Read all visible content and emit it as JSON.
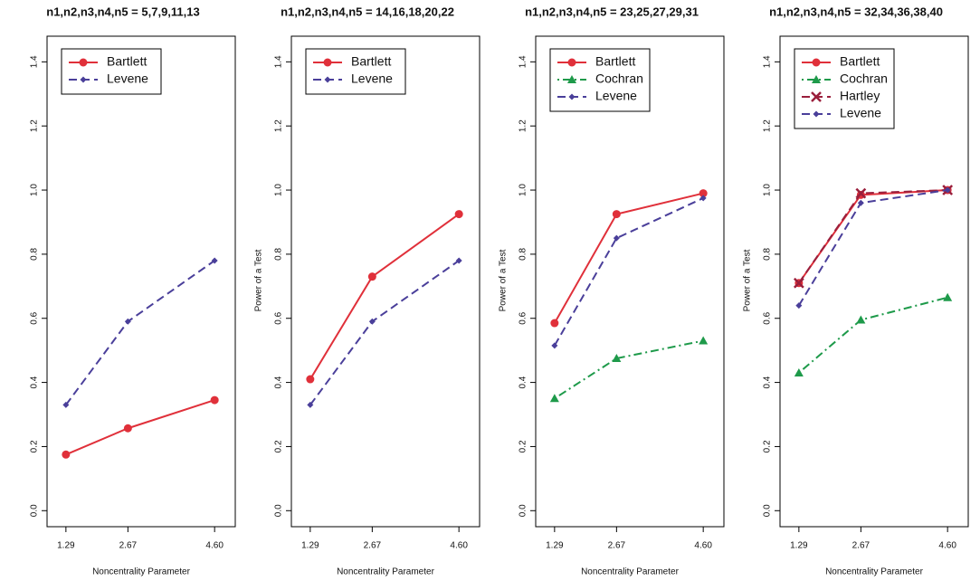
{
  "chart_data": [
    {
      "type": "line",
      "title": "n1,n2,n3,n4,n5 = 5,7,9,11,13",
      "x_label": "Noncentrality Parameter",
      "x": [
        1.29,
        2.67,
        4.6
      ],
      "xlim": [
        0.87,
        5.06
      ],
      "xticks": [
        1.29,
        2.67,
        {
          "value": 4.6,
          "label": "4.60"
        }
      ],
      "ylim": [
        -0.05,
        1.48
      ],
      "yticks": [
        {
          "value": 0,
          "label": "0.0"
        },
        0.2,
        0.4,
        0.6,
        0.8,
        {
          "value": 1,
          "label": "1.0"
        },
        1.2,
        1.4
      ],
      "legend": "upper left",
      "series": [
        {
          "name": "Bartlett",
          "color": "#e0303a",
          "line_style": "solid",
          "marker": "circle",
          "values": [
            0.175,
            0.257,
            0.345
          ]
        },
        {
          "name": "Levene",
          "color": "#4a3f9a",
          "line_style": "dashed",
          "marker": "diamond",
          "values": [
            0.33,
            0.59,
            0.78
          ]
        }
      ]
    },
    {
      "type": "line",
      "title": "n1,n2,n3,n4,n5 = 14,16,18,20,22",
      "x_label": "Noncentrality Parameter",
      "y_label": "Power of a Test",
      "x": [
        1.29,
        2.67,
        4.6
      ],
      "xlim": [
        0.87,
        5.06
      ],
      "xticks": [
        1.29,
        2.67,
        {
          "value": 4.6,
          "label": "4.60"
        }
      ],
      "ylim": [
        -0.05,
        1.48
      ],
      "yticks": [
        {
          "value": 0,
          "label": "0.0"
        },
        0.2,
        0.4,
        0.6,
        0.8,
        {
          "value": 1,
          "label": "1.0"
        },
        1.2,
        1.4
      ],
      "legend": "upper left",
      "series": [
        {
          "name": "Bartlett",
          "color": "#e0303a",
          "line_style": "solid",
          "marker": "circle",
          "values": [
            0.41,
            0.73,
            0.925
          ]
        },
        {
          "name": "Levene",
          "color": "#4a3f9a",
          "line_style": "dashed",
          "marker": "diamond",
          "values": [
            0.33,
            0.59,
            0.78
          ]
        }
      ]
    },
    {
      "type": "line",
      "title": "n1,n2,n3,n4,n5 = 23,25,27,29,31",
      "x_label": "Noncentrality Parameter",
      "y_label": "Power of a Test",
      "x": [
        1.29,
        2.67,
        4.6
      ],
      "xlim": [
        0.87,
        5.06
      ],
      "xticks": [
        1.29,
        2.67,
        {
          "value": 4.6,
          "label": "4.60"
        }
      ],
      "ylim": [
        -0.05,
        1.48
      ],
      "yticks": [
        {
          "value": 0,
          "label": "0.0"
        },
        0.2,
        0.4,
        0.6,
        0.8,
        {
          "value": 1,
          "label": "1.0"
        },
        1.2,
        1.4
      ],
      "legend": "upper left",
      "series": [
        {
          "name": "Bartlett",
          "color": "#e0303a",
          "line_style": "solid",
          "marker": "circle",
          "values": [
            0.585,
            0.925,
            0.99
          ]
        },
        {
          "name": "Cochran",
          "color": "#1e9a4a",
          "line_style": "dotdash",
          "marker": "triangle",
          "values": [
            0.35,
            0.475,
            0.53
          ]
        },
        {
          "name": "Levene",
          "color": "#4a3f9a",
          "line_style": "dashed",
          "marker": "diamond",
          "values": [
            0.515,
            0.85,
            0.975
          ]
        }
      ]
    },
    {
      "type": "line",
      "title": "n1,n2,n3,n4,n5 = 32,34,36,38,40",
      "x_label": "Noncentrality Parameter",
      "y_label": "Power of a Test",
      "x": [
        1.29,
        2.67,
        4.6
      ],
      "xlim": [
        0.87,
        5.06
      ],
      "xticks": [
        1.29,
        2.67,
        {
          "value": 4.6,
          "label": "4.60"
        }
      ],
      "ylim": [
        -0.05,
        1.48
      ],
      "yticks": [
        {
          "value": 0,
          "label": "0.0"
        },
        0.2,
        0.4,
        0.6,
        0.8,
        {
          "value": 1,
          "label": "1.0"
        },
        1.2,
        1.4
      ],
      "legend": "upper left",
      "series": [
        {
          "name": "Bartlett",
          "color": "#e0303a",
          "line_style": "solid",
          "marker": "circle",
          "values": [
            0.71,
            0.985,
            1.0
          ]
        },
        {
          "name": "Cochran",
          "color": "#1e9a4a",
          "line_style": "dotdash",
          "marker": "triangle",
          "values": [
            0.43,
            0.595,
            0.665
          ]
        },
        {
          "name": "Hartley",
          "color": "#9a1f3c",
          "line_style": "dashed",
          "marker": "x",
          "values": [
            0.71,
            0.99,
            1.0
          ]
        },
        {
          "name": "Levene",
          "color": "#4a3f9a",
          "line_style": "dashed",
          "marker": "diamond",
          "values": [
            0.64,
            0.96,
            1.0
          ]
        }
      ]
    }
  ]
}
